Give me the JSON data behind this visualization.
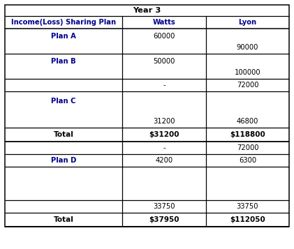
{
  "title": "Year 3",
  "headers": [
    "Income(Loss) Sharing Plan",
    "Watts",
    "Lyon"
  ],
  "header_color": "#00008B",
  "data_color": "#000000",
  "bg_color": "#ffffff",
  "total_row1": {
    "label": "Total",
    "col1": "$31200",
    "col2": "$118800"
  },
  "total_row2": {
    "label": "Total",
    "col1": "$37950",
    "col2": "$112050"
  }
}
